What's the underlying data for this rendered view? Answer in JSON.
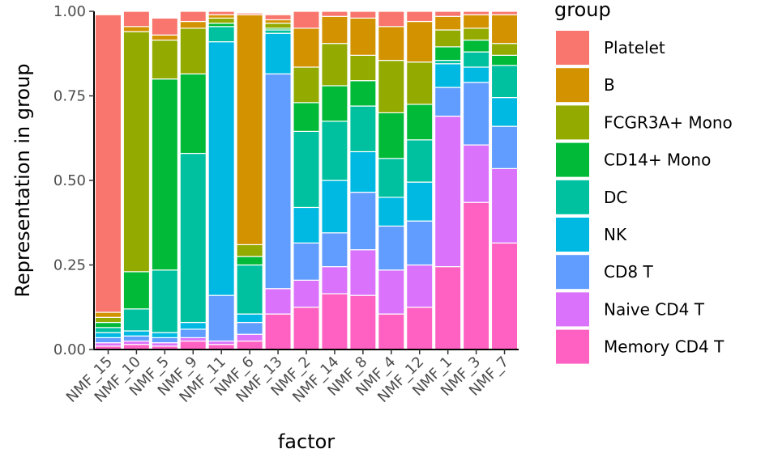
{
  "chart_data": {
    "type": "bar",
    "stacked": true,
    "xlabel": "factor",
    "ylabel": "Representation in group",
    "ylim": [
      0,
      1
    ],
    "y_ticks": [
      "0.00",
      "0.25",
      "0.50",
      "0.75",
      "1.00"
    ],
    "legend_title": "group",
    "legend_position": "right",
    "grid": false,
    "categories": [
      "NMF_15",
      "NMF_10",
      "NMF_5",
      "NMF_9",
      "NMF_11",
      "NMF_6",
      "NMF_13",
      "NMF_2",
      "NMF_14",
      "NMF_8",
      "NMF_4",
      "NMF_12",
      "NMF_1",
      "NMF_3",
      "NMF_7"
    ],
    "series": [
      {
        "name": "Platelet",
        "color": "#F8766D",
        "values": [
          0.88,
          0.045,
          0.05,
          0.03,
          0.01,
          0.005,
          0.015,
          0.05,
          0.015,
          0.02,
          0.045,
          0.03,
          0.015,
          0.01,
          0.01
        ]
      },
      {
        "name": "B",
        "color": "#D39200",
        "values": [
          0.015,
          0.015,
          0.015,
          0.02,
          0.01,
          0.68,
          0.01,
          0.115,
          0.08,
          0.11,
          0.1,
          0.12,
          0.04,
          0.04,
          0.085
        ]
      },
      {
        "name": "FCGR3A+ Mono",
        "color": "#93AA00",
        "values": [
          0.015,
          0.71,
          0.115,
          0.135,
          0.015,
          0.035,
          0.015,
          0.105,
          0.125,
          0.075,
          0.155,
          0.125,
          0.05,
          0.035,
          0.035
        ]
      },
      {
        "name": "CD14+ Mono",
        "color": "#00BA38",
        "values": [
          0.015,
          0.11,
          0.565,
          0.235,
          0.01,
          0.025,
          0.005,
          0.085,
          0.105,
          0.075,
          0.135,
          0.105,
          0.04,
          0.035,
          0.03
        ]
      },
      {
        "name": "DC",
        "color": "#00C19F",
        "values": [
          0.015,
          0.065,
          0.185,
          0.5,
          0.045,
          0.145,
          0.01,
          0.225,
          0.175,
          0.135,
          0.115,
          0.125,
          0.01,
          0.045,
          0.095
        ]
      },
      {
        "name": "NK",
        "color": "#00B9E3",
        "values": [
          0.015,
          0.015,
          0.015,
          0.02,
          0.75,
          0.025,
          0.12,
          0.105,
          0.155,
          0.12,
          0.085,
          0.115,
          0.07,
          0.045,
          0.085
        ]
      },
      {
        "name": "CD8 T",
        "color": "#619CFF",
        "values": [
          0.015,
          0.015,
          0.015,
          0.025,
          0.135,
          0.035,
          0.635,
          0.11,
          0.1,
          0.17,
          0.13,
          0.13,
          0.085,
          0.185,
          0.125
        ]
      },
      {
        "name": "Naive CD4 T",
        "color": "#DB72FB",
        "values": [
          0.01,
          0.01,
          0.01,
          0.01,
          0.01,
          0.02,
          0.075,
          0.08,
          0.08,
          0.135,
          0.13,
          0.125,
          0.445,
          0.17,
          0.22
        ]
      },
      {
        "name": "Memory CD4 T",
        "color": "#FF61C3",
        "values": [
          0.01,
          0.015,
          0.01,
          0.025,
          0.015,
          0.025,
          0.105,
          0.125,
          0.165,
          0.16,
          0.105,
          0.125,
          0.245,
          0.435,
          0.315
        ]
      }
    ]
  }
}
